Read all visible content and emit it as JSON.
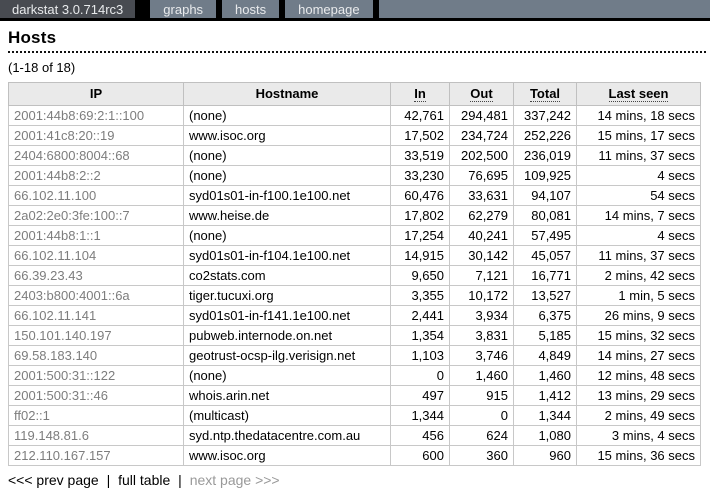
{
  "navbar": {
    "brand": "darkstat 3.0.714rc3",
    "items": [
      {
        "label": "graphs"
      },
      {
        "label": "hosts"
      },
      {
        "label": "homepage"
      }
    ],
    "colors": {
      "bar": "#000000",
      "brand_bg": "#484b51",
      "item_bg": "#707c89",
      "text": "#e8eaec"
    }
  },
  "page": {
    "title": "Hosts",
    "range_label": "(1-18 of 18)"
  },
  "table": {
    "columns": [
      {
        "label": "IP",
        "sortable": false
      },
      {
        "label": "Hostname",
        "sortable": false
      },
      {
        "label": "In",
        "sortable": true
      },
      {
        "label": "Out",
        "sortable": true
      },
      {
        "label": "Total",
        "sortable": true
      },
      {
        "label": "Last seen",
        "sortable": true
      }
    ],
    "rows": [
      {
        "ip": "2001:44b8:69:2:1::100",
        "hostname": "(none)",
        "in": "42,761",
        "out": "294,481",
        "total": "337,242",
        "last_seen": "14 mins, 18 secs"
      },
      {
        "ip": "2001:41c8:20::19",
        "hostname": "www.isoc.org",
        "in": "17,502",
        "out": "234,724",
        "total": "252,226",
        "last_seen": "15 mins, 17 secs"
      },
      {
        "ip": "2404:6800:8004::68",
        "hostname": "(none)",
        "in": "33,519",
        "out": "202,500",
        "total": "236,019",
        "last_seen": "11 mins, 37 secs"
      },
      {
        "ip": "2001:44b8:2::2",
        "hostname": "(none)",
        "in": "33,230",
        "out": "76,695",
        "total": "109,925",
        "last_seen": "4 secs"
      },
      {
        "ip": "66.102.11.100",
        "hostname": "syd01s01-in-f100.1e100.net",
        "in": "60,476",
        "out": "33,631",
        "total": "94,107",
        "last_seen": "54 secs"
      },
      {
        "ip": "2a02:2e0:3fe:100::7",
        "hostname": "www.heise.de",
        "in": "17,802",
        "out": "62,279",
        "total": "80,081",
        "last_seen": "14 mins, 7 secs"
      },
      {
        "ip": "2001:44b8:1::1",
        "hostname": "(none)",
        "in": "17,254",
        "out": "40,241",
        "total": "57,495",
        "last_seen": "4 secs"
      },
      {
        "ip": "66.102.11.104",
        "hostname": "syd01s01-in-f104.1e100.net",
        "in": "14,915",
        "out": "30,142",
        "total": "45,057",
        "last_seen": "11 mins, 37 secs"
      },
      {
        "ip": "66.39.23.43",
        "hostname": "co2stats.com",
        "in": "9,650",
        "out": "7,121",
        "total": "16,771",
        "last_seen": "2 mins, 42 secs"
      },
      {
        "ip": "2403:b800:4001::6a",
        "hostname": "tiger.tucuxi.org",
        "in": "3,355",
        "out": "10,172",
        "total": "13,527",
        "last_seen": "1 min, 5 secs"
      },
      {
        "ip": "66.102.11.141",
        "hostname": "syd01s01-in-f141.1e100.net",
        "in": "2,441",
        "out": "3,934",
        "total": "6,375",
        "last_seen": "26 mins, 9 secs"
      },
      {
        "ip": "150.101.140.197",
        "hostname": "pubweb.internode.on.net",
        "in": "1,354",
        "out": "3,831",
        "total": "5,185",
        "last_seen": "15 mins, 32 secs"
      },
      {
        "ip": "69.58.183.140",
        "hostname": "geotrust-ocsp-ilg.verisign.net",
        "in": "1,103",
        "out": "3,746",
        "total": "4,849",
        "last_seen": "14 mins, 27 secs"
      },
      {
        "ip": "2001:500:31::122",
        "hostname": "(none)",
        "in": "0",
        "out": "1,460",
        "total": "1,460",
        "last_seen": "12 mins, 48 secs"
      },
      {
        "ip": "2001:500:31::46",
        "hostname": "whois.arin.net",
        "in": "497",
        "out": "915",
        "total": "1,412",
        "last_seen": "13 mins, 29 secs"
      },
      {
        "ip": "ff02::1",
        "hostname": "(multicast)",
        "in": "1,344",
        "out": "0",
        "total": "1,344",
        "last_seen": "2 mins, 49 secs"
      },
      {
        "ip": "119.148.81.6",
        "hostname": "syd.ntp.thedatacentre.com.au",
        "in": "456",
        "out": "624",
        "total": "1,080",
        "last_seen": "3 mins, 4 secs"
      },
      {
        "ip": "212.110.167.157",
        "hostname": "www.isoc.org",
        "in": "600",
        "out": "360",
        "total": "960",
        "last_seen": "15 mins, 36 secs"
      }
    ]
  },
  "pagination": {
    "prev_label": "<<< prev page",
    "full_label": "full table",
    "next_label": "next page >>>",
    "separator": "|"
  },
  "colors": {
    "header_row_bg": "#eaeaea",
    "table_border": "#c0c0c0",
    "ip_text": "#7d7d7d",
    "disabled_link": "#999999"
  }
}
